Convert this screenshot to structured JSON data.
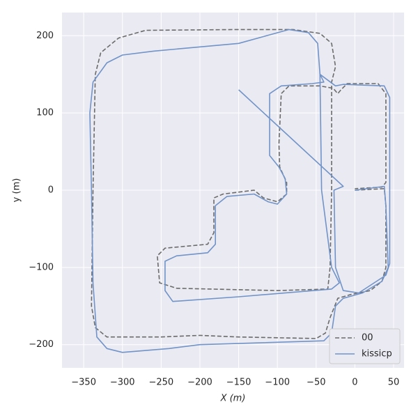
{
  "chart_data": {
    "type": "line",
    "xlabel": "X (m)",
    "ylabel": "y (m)",
    "xlim": [
      -378,
      63.5
    ],
    "ylim": [
      -230,
      230
    ],
    "xticks": [
      {
        "value": -350,
        "label": "−350"
      },
      {
        "value": -300,
        "label": "−300"
      },
      {
        "value": -250,
        "label": "−250"
      },
      {
        "value": -200,
        "label": "−200"
      },
      {
        "value": -150,
        "label": "−150"
      },
      {
        "value": -100,
        "label": "−100"
      },
      {
        "value": -50,
        "label": "−50"
      },
      0,
      50
    ],
    "yticks": [
      {
        "value": -200,
        "label": "−200"
      },
      {
        "value": -100,
        "label": "−100"
      },
      0,
      100,
      200
    ],
    "grid": true,
    "legend": "lower right",
    "series": [
      {
        "name": "00",
        "color": "#6b6b6b",
        "dash": true,
        "x": [
          0,
          38,
          40,
          40,
          35,
          20,
          -5,
          -22,
          -32,
          -38,
          -50,
          -150,
          -200,
          -250,
          -320,
          -335,
          -340,
          -338,
          -335,
          -328,
          -305,
          -270,
          -150,
          -80,
          -45,
          -30,
          -25,
          -30,
          -30,
          -32,
          -35,
          -100,
          -230,
          -252,
          -255,
          -245,
          -190,
          -182,
          -182,
          -170,
          -130,
          -118,
          -100,
          -88,
          -88,
          -97,
          -98,
          -95,
          -85,
          -45,
          -28,
          -22,
          -18,
          -10,
          30,
          40,
          40,
          35,
          0
        ],
        "y": [
          0,
          2,
          -20,
          -100,
          -118,
          -130,
          -135,
          -140,
          -165,
          -185,
          -192,
          -190,
          -188,
          -190,
          -190,
          -178,
          -150,
          0,
          150,
          178,
          197,
          207,
          208,
          208,
          203,
          190,
          160,
          140,
          0,
          -100,
          -128,
          -130,
          -127,
          -120,
          -85,
          -75,
          -70,
          -55,
          -10,
          -5,
          0,
          -10,
          -15,
          -5,
          10,
          30,
          60,
          125,
          135,
          135,
          132,
          125,
          130,
          138,
          138,
          125,
          10,
          4,
          2
        ]
      },
      {
        "name": "kissicp",
        "color": "#7193c7",
        "dash": false,
        "x": [
          0,
          38,
          40,
          43,
          35,
          10,
          -15,
          -25,
          -30,
          -40,
          -200,
          -240,
          -300,
          -320,
          -333,
          -338,
          -340,
          -342,
          -338,
          -320,
          -300,
          -260,
          -150,
          -85,
          -60,
          -48,
          -45,
          -43,
          -30,
          -20,
          -30,
          -150,
          -235,
          -245,
          -245,
          -230,
          -190,
          -180,
          -180,
          -165,
          -130,
          -112,
          -100,
          -88,
          -90,
          -98,
          -110,
          -110,
          -95,
          -55,
          -40,
          -45,
          -25,
          -15,
          38,
          45,
          45,
          40,
          5,
          -15,
          -25,
          -27,
          -15,
          -150
        ],
        "y": [
          0,
          5,
          -20,
          -100,
          -118,
          -133,
          -140,
          -150,
          -185,
          -195,
          -200,
          -205,
          -210,
          -205,
          -190,
          -120,
          0,
          100,
          140,
          165,
          175,
          180,
          190,
          208,
          204,
          190,
          150,
          0,
          -100,
          -120,
          -128,
          -138,
          -144,
          -130,
          -92,
          -85,
          -81,
          -70,
          -20,
          -8,
          -5,
          -15,
          -18,
          -5,
          15,
          30,
          45,
          125,
          135,
          138,
          140,
          150,
          135,
          137,
          135,
          120,
          -95,
          -110,
          -133,
          -130,
          -100,
          0,
          5,
          130
        ]
      }
    ]
  }
}
